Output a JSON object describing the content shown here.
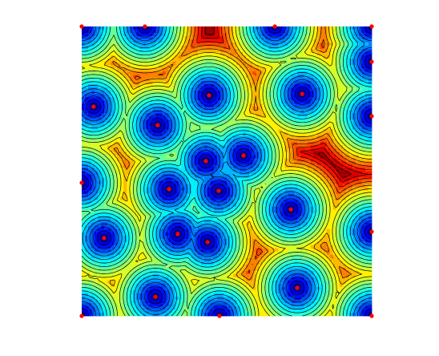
{
  "chart_data": {
    "type": "contour",
    "x": [
      0,
      0.218,
      0.666,
      1,
      1,
      1,
      1,
      1,
      0,
      0,
      0.475,
      0.041,
      0.439,
      0.76,
      0.262,
      0.428,
      0.558,
      0.301,
      0.472,
      0.721,
      0.077,
      0.331,
      0.434,
      0.743,
      0.254
    ],
    "y": [
      1,
      1,
      1,
      1,
      0.878,
      0.69,
      0.291,
      0,
      0.46,
      0,
      0,
      0.723,
      0.762,
      0.767,
      0.659,
      0.535,
      0.554,
      0.438,
      0.432,
      0.368,
      0.269,
      0.283,
      0.255,
      0.097,
      0.066
    ],
    "xlim": [
      0,
      1
    ],
    "ylim": [
      0,
      1
    ],
    "colormap": "jet",
    "color": "#ff0000"
  }
}
